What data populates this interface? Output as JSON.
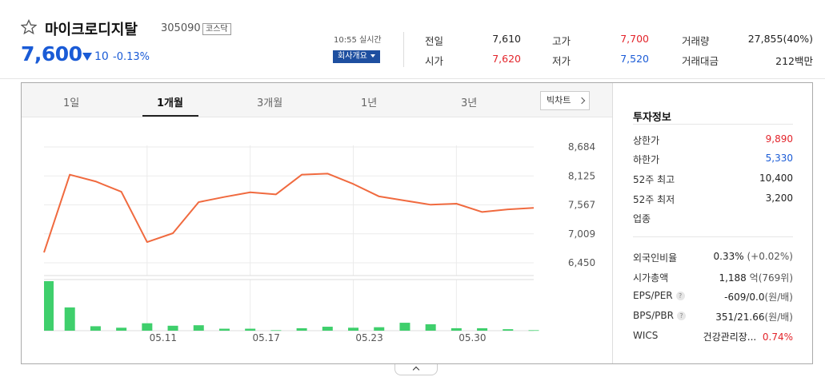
{
  "header": {
    "star_icon": "star-outline-icon",
    "name": "마이크로디지탈",
    "code": "305090",
    "market": "코스닥",
    "price": "7,600",
    "change": "10",
    "change_pct": "-0.13%",
    "change_direction": "down",
    "realtime_label": "10:55 실시간",
    "company_button": "회사개요"
  },
  "quote": {
    "prev_close_label": "전일",
    "prev_close": "7,610",
    "open_label": "시가",
    "open": "7,620",
    "high_label": "고가",
    "high": "7,700",
    "low_label": "저가",
    "low": "7,520",
    "volume_label": "거래량",
    "volume": "27,855(40%)",
    "amount_label": "거래대금",
    "amount": "212백만"
  },
  "tabs": [
    {
      "label": "1일",
      "active": false
    },
    {
      "label": "1개월",
      "active": true
    },
    {
      "label": "3개월",
      "active": false
    },
    {
      "label": "1년",
      "active": false
    },
    {
      "label": "3년",
      "active": false
    }
  ],
  "bigchart_label": "빅차트",
  "chart_data": {
    "type": "line",
    "y_ticks": [
      "8,684",
      "8,125",
      "7,567",
      "7,009",
      "6,450"
    ],
    "ylim": [
      6450,
      8684
    ],
    "x_ticks": [
      "05.11",
      "05.17",
      "05.23",
      "05.30"
    ],
    "x_tick_index": [
      4,
      8,
      12,
      16
    ],
    "price": [
      6650,
      8150,
      8020,
      7820,
      6850,
      7020,
      7620,
      7720,
      7810,
      7770,
      8150,
      8170,
      7970,
      7730,
      7650,
      7570,
      7590,
      7430,
      7480,
      7510
    ],
    "volume": [
      100,
      47,
      9,
      6,
      15,
      10,
      11,
      4,
      4,
      1,
      5,
      8,
      6,
      7,
      16,
      13,
      5,
      5,
      3,
      1
    ],
    "grid": true,
    "line_color": "#f06a3f",
    "bar_color": "#3fcf6c"
  },
  "invest": {
    "title": "투자정보",
    "upper_limit_label": "상한가",
    "upper_limit": "9,890",
    "lower_limit_label": "하한가",
    "lower_limit": "5,330",
    "w52_high_label": "52주 최고",
    "w52_high": "10,400",
    "w52_low_label": "52주 최저",
    "w52_low": "3,200",
    "sector_label": "업종",
    "foreign_label": "외국인비율",
    "foreign": "0.33%",
    "foreign_sub": "(+0.02%)",
    "mcap_label": "시가총액",
    "mcap": "1,188",
    "mcap_unit": "억",
    "mcap_sub": "(769위)",
    "eps_label": "EPS/PER",
    "eps": "-609/0.0",
    "eps_sub": "(원/배)",
    "bps_label": "BPS/PBR",
    "bps": "351/21.66",
    "bps_sub": "(원/배)",
    "wics_label": "WICS",
    "wics": "건강관리장...",
    "wics_pct": "0.74%"
  }
}
